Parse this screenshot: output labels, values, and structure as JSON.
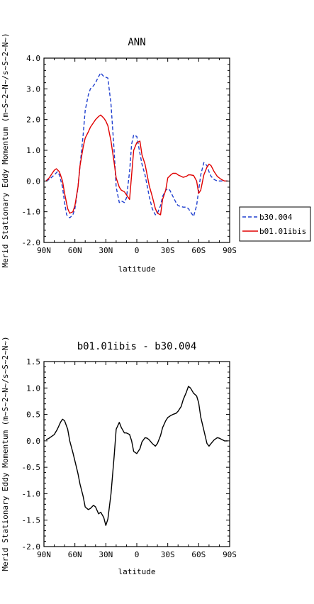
{
  "chart_data": [
    {
      "type": "line",
      "title": "ANN",
      "xlabel": "latitude",
      "ylabel": "Merid Stationary Eddy Momentum (m~S~2~N~/s~S~2~N~)",
      "ylim": [
        -2.0,
        4.0
      ],
      "xlim": [
        90,
        -90
      ],
      "x_ticks": [
        90,
        60,
        30,
        0,
        -30,
        -60,
        -90
      ],
      "x_tick_labels": [
        "90N",
        "60N",
        "30N",
        "0",
        "30S",
        "60S",
        "90S"
      ],
      "y_ticks": [
        -2.0,
        -1.0,
        0.0,
        1.0,
        2.0,
        3.0,
        4.0
      ],
      "y_tick_labels": [
        "-2.0",
        "-1.0",
        "0.0",
        "1.0",
        "2.0",
        "3.0",
        "4.0"
      ],
      "legend": "right",
      "series": [
        {
          "name": "b30.004",
          "color": "#1f3fcf",
          "dash": "dashed",
          "x": [
            88,
            85,
            80,
            77,
            75,
            72,
            70,
            68,
            65,
            62,
            60,
            57,
            55,
            52,
            50,
            47,
            45,
            42,
            40,
            37,
            35,
            32,
            30,
            28,
            25,
            22,
            20,
            17,
            15,
            12,
            10,
            7,
            5,
            3,
            0,
            -3,
            -5,
            -8,
            -10,
            -12,
            -15,
            -18,
            -20,
            -23,
            -25,
            -28,
            -30,
            -32,
            -35,
            -38,
            -40,
            -42,
            -45,
            -48,
            -50,
            -53,
            -55,
            -58,
            -60,
            -62,
            -65,
            -68,
            -70,
            -72,
            -75,
            -78,
            -80,
            -82,
            -85,
            -88
          ],
          "y": [
            0.0,
            0.05,
            0.2,
            0.3,
            0.2,
            -0.2,
            -0.7,
            -1.1,
            -1.2,
            -1.1,
            -0.9,
            -0.2,
            0.5,
            1.5,
            2.3,
            2.8,
            3.0,
            3.1,
            3.2,
            3.4,
            3.52,
            3.4,
            3.38,
            3.35,
            2.5,
            1.0,
            -0.2,
            -0.7,
            -0.65,
            -0.7,
            -0.55,
            0.3,
            1.2,
            1.5,
            1.45,
            0.9,
            0.55,
            0.2,
            -0.15,
            -0.5,
            -0.9,
            -1.1,
            -1.05,
            -0.8,
            -0.5,
            -0.3,
            -0.25,
            -0.3,
            -0.5,
            -0.7,
            -0.8,
            -0.82,
            -0.85,
            -0.85,
            -0.9,
            -1.05,
            -1.15,
            -0.8,
            -0.3,
            0.2,
            0.6,
            0.5,
            0.3,
            0.15,
            0.05,
            0.0,
            0.0,
            0.0,
            0.0,
            0.0
          ]
        },
        {
          "name": "b01.01ibis",
          "color": "#e00000",
          "dash": "solid",
          "x": [
            88,
            85,
            82,
            80,
            78,
            75,
            72,
            70,
            67,
            65,
            62,
            60,
            57,
            55,
            52,
            50,
            47,
            45,
            42,
            40,
            37,
            35,
            32,
            30,
            28,
            25,
            22,
            20,
            17,
            15,
            12,
            10,
            7,
            5,
            3,
            0,
            -3,
            -5,
            -8,
            -10,
            -12,
            -15,
            -18,
            -20,
            -23,
            -25,
            -28,
            -30,
            -33,
            -35,
            -38,
            -40,
            -43,
            -45,
            -48,
            -50,
            -52,
            -55,
            -58,
            -60,
            -62,
            -65,
            -68,
            -70,
            -72,
            -75,
            -78,
            -80,
            -82,
            -85,
            -88
          ],
          "y": [
            0.0,
            0.1,
            0.25,
            0.35,
            0.4,
            0.3,
            0.0,
            -0.4,
            -0.9,
            -1.05,
            -1.0,
            -0.8,
            -0.2,
            0.5,
            1.1,
            1.4,
            1.6,
            1.75,
            1.9,
            2.0,
            2.1,
            2.15,
            2.05,
            1.95,
            1.8,
            1.3,
            0.6,
            0.1,
            -0.2,
            -0.3,
            -0.35,
            -0.45,
            -0.6,
            0.2,
            1.0,
            1.25,
            1.3,
            0.85,
            0.55,
            0.2,
            -0.15,
            -0.5,
            -0.9,
            -1.05,
            -1.1,
            -0.6,
            -0.3,
            0.1,
            0.2,
            0.25,
            0.25,
            0.2,
            0.15,
            0.12,
            0.15,
            0.2,
            0.2,
            0.18,
            0.0,
            -0.4,
            -0.3,
            0.2,
            0.45,
            0.55,
            0.5,
            0.3,
            0.15,
            0.1,
            0.05,
            0.0,
            0.0
          ]
        }
      ]
    },
    {
      "type": "line",
      "title": "b01.01ibis - b30.004",
      "xlabel": "latitude",
      "ylabel": "Merid Stationary Eddy Momentum (m~S~2~N~/s~S~2~N~)",
      "ylim": [
        -2.0,
        1.5
      ],
      "xlim": [
        90,
        -90
      ],
      "x_ticks": [
        90,
        60,
        30,
        0,
        -30,
        -60,
        -90
      ],
      "x_tick_labels": [
        "90N",
        "60N",
        "30N",
        "0",
        "30S",
        "60S",
        "90S"
      ],
      "y_ticks": [
        -2.0,
        -1.5,
        -1.0,
        -0.5,
        0.0,
        0.5,
        1.0,
        1.5
      ],
      "y_tick_labels": [
        "-2.0",
        "-1.5",
        "-1.0",
        "-0.5",
        "0.0",
        "0.5",
        "1.0",
        "1.5"
      ],
      "series": [
        {
          "color": "#000000",
          "dash": "solid",
          "x": [
            88,
            85,
            80,
            77,
            74,
            72,
            70,
            67,
            65,
            62,
            60,
            57,
            55,
            52,
            50,
            47,
            45,
            42,
            40,
            37,
            35,
            32,
            30,
            28,
            25,
            22,
            20,
            17,
            15,
            12,
            10,
            7,
            5,
            3,
            0,
            -3,
            -5,
            -8,
            -10,
            -12,
            -15,
            -18,
            -20,
            -23,
            -25,
            -28,
            -30,
            -33,
            -35,
            -38,
            -40,
            -43,
            -45,
            -48,
            -50,
            -52,
            -55,
            -58,
            -60,
            -62,
            -65,
            -68,
            -70,
            -72,
            -75,
            -78,
            -80,
            -83,
            -85,
            -88
          ],
          "y": [
            0.02,
            0.05,
            0.12,
            0.22,
            0.35,
            0.41,
            0.38,
            0.22,
            0.0,
            -0.22,
            -0.38,
            -0.62,
            -0.82,
            -1.05,
            -1.25,
            -1.3,
            -1.28,
            -1.22,
            -1.25,
            -1.38,
            -1.35,
            -1.45,
            -1.6,
            -1.48,
            -1.0,
            -0.3,
            0.22,
            0.35,
            0.25,
            0.15,
            0.15,
            0.12,
            0.0,
            -0.2,
            -0.24,
            -0.15,
            -0.02,
            0.06,
            0.05,
            0.02,
            -0.05,
            -0.1,
            -0.05,
            0.1,
            0.25,
            0.38,
            0.44,
            0.48,
            0.5,
            0.52,
            0.56,
            0.65,
            0.78,
            0.92,
            1.03,
            1.0,
            0.9,
            0.85,
            0.72,
            0.45,
            0.2,
            -0.05,
            -0.1,
            -0.05,
            0.02,
            0.06,
            0.05,
            0.02,
            0.0,
            0.0
          ]
        }
      ]
    }
  ]
}
